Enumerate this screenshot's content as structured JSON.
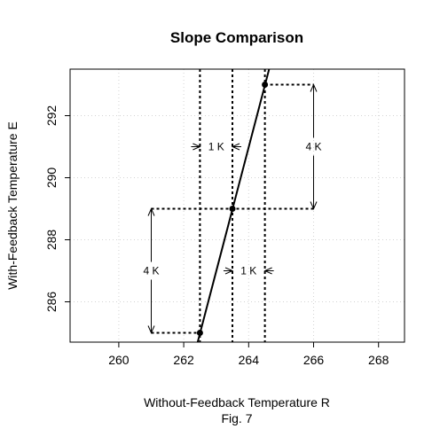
{
  "chart_data": {
    "type": "line",
    "title": "Slope Comparison",
    "xlabel": "Without-Feedback Temperature R",
    "ylabel": "With-Feedback Temperature E",
    "caption": "Fig. 7",
    "xlim": [
      258.5,
      268.8
    ],
    "ylim": [
      284.7,
      293.5
    ],
    "xticks": [
      260,
      262,
      264,
      266,
      268
    ],
    "yticks": [
      286,
      288,
      290,
      292
    ],
    "grid": true,
    "series": [
      {
        "x": [
          262.5,
          263.5,
          264.5
        ],
        "y": [
          285,
          289,
          293
        ],
        "line_extent": [
          [
            262.43,
            284.7
          ],
          [
            264.63,
            293.5
          ]
        ]
      }
    ],
    "vertical_guides": [
      262.5,
      263.5,
      264.5
    ],
    "horizontal_guides": [
      {
        "y": 285,
        "x_from": 261,
        "x_to": 262.5
      },
      {
        "y": 289,
        "x_from": 261,
        "x_to": 266
      },
      {
        "y": 293,
        "x_from": 264.5,
        "x_to": 266
      }
    ],
    "annotations": [
      {
        "label": "4 K",
        "type": "vertical",
        "x": 261,
        "y_from": 285,
        "y_to": 289
      },
      {
        "label": "4 K",
        "type": "vertical",
        "x": 266,
        "y_from": 289,
        "y_to": 293
      },
      {
        "label": "1 K",
        "type": "horizontal",
        "y": 291,
        "x_from": 262.5,
        "x_to": 263.5
      },
      {
        "label": "1 K",
        "type": "horizontal",
        "y": 287,
        "x_from": 263.5,
        "x_to": 264.5
      }
    ]
  }
}
